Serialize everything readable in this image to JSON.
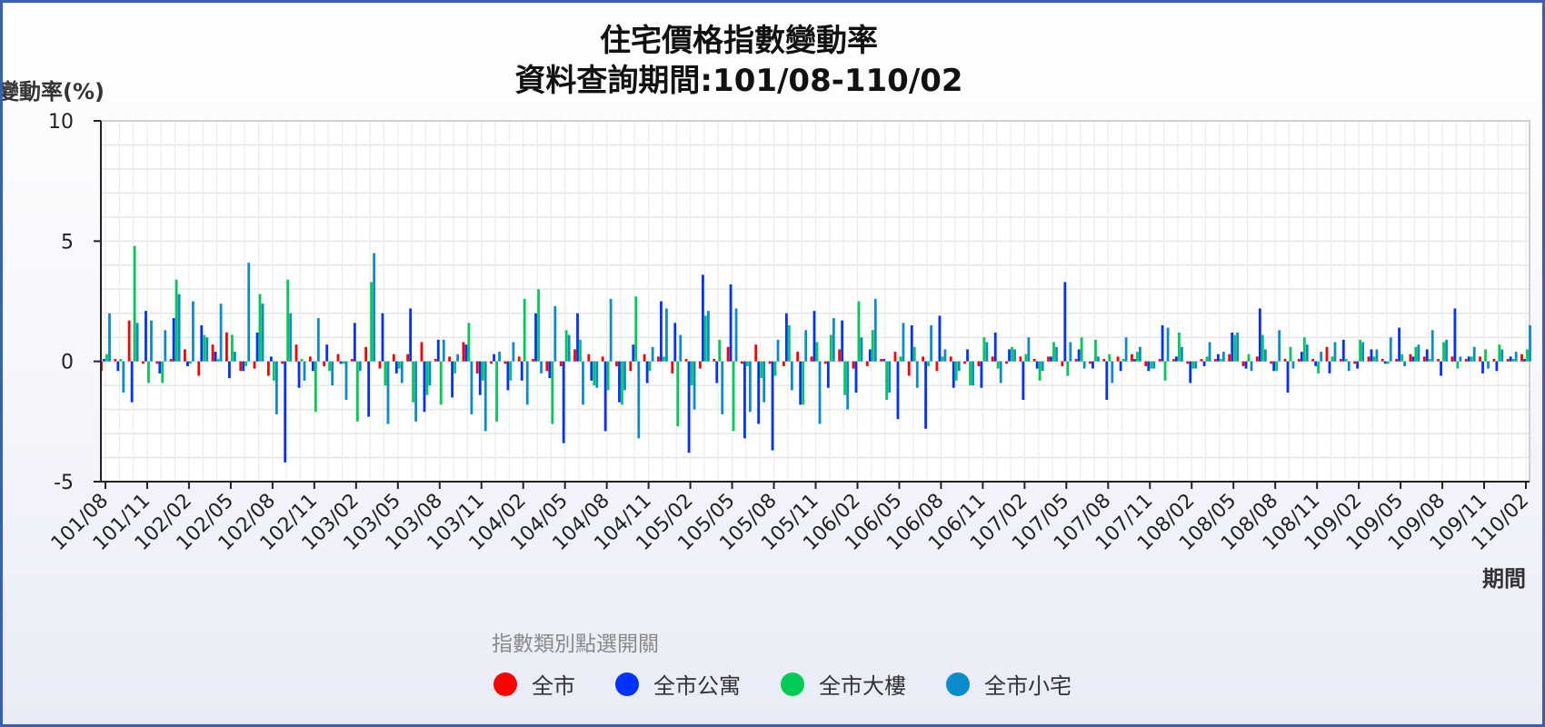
{
  "chart_data": {
    "type": "bar",
    "title": "住宅價格指數變動率",
    "subtitle": "資料查詢期間:101/08-110/02",
    "ylabel": "變動率(%)",
    "xlabel": "期間",
    "ylim": [
      -5,
      10
    ],
    "yticks": [
      -5,
      0,
      5,
      10
    ],
    "grid": true,
    "x_tick_labels": [
      "101/08",
      "101/11",
      "102/02",
      "102/05",
      "102/08",
      "102/11",
      "103/02",
      "103/05",
      "103/08",
      "103/11",
      "104/02",
      "104/05",
      "104/08",
      "104/11",
      "105/02",
      "105/05",
      "105/08",
      "105/11",
      "106/02",
      "106/05",
      "106/08",
      "106/11",
      "107/02",
      "107/05",
      "107/08",
      "107/11",
      "108/02",
      "108/05",
      "108/08",
      "108/11",
      "109/02",
      "109/05",
      "109/08",
      "109/11",
      "110/02"
    ],
    "categories": [
      "101/08",
      "101/09",
      "101/10",
      "101/11",
      "101/12",
      "102/01",
      "102/02",
      "102/03",
      "102/04",
      "102/05",
      "102/06",
      "102/07",
      "102/08",
      "102/09",
      "102/10",
      "102/11",
      "102/12",
      "103/01",
      "103/02",
      "103/03",
      "103/04",
      "103/05",
      "103/06",
      "103/07",
      "103/08",
      "103/09",
      "103/10",
      "103/11",
      "103/12",
      "104/01",
      "104/02",
      "104/03",
      "104/04",
      "104/05",
      "104/06",
      "104/07",
      "104/08",
      "104/09",
      "104/10",
      "104/11",
      "104/12",
      "105/01",
      "105/02",
      "105/03",
      "105/04",
      "105/05",
      "105/06",
      "105/07",
      "105/08",
      "105/09",
      "105/10",
      "105/11",
      "105/12",
      "106/01",
      "106/02",
      "106/03",
      "106/04",
      "106/05",
      "106/06",
      "106/07",
      "106/08",
      "106/09",
      "106/10",
      "106/11",
      "106/12",
      "107/01",
      "107/02",
      "107/03",
      "107/04",
      "107/05",
      "107/06",
      "107/07",
      "107/08",
      "107/09",
      "107/10",
      "107/11",
      "107/12",
      "108/01",
      "108/02",
      "108/03",
      "108/04",
      "108/05",
      "108/06",
      "108/07",
      "108/08",
      "108/09",
      "108/10",
      "108/11",
      "108/12",
      "109/01",
      "109/02",
      "109/03",
      "109/04",
      "109/05",
      "109/06",
      "109/07",
      "109/08",
      "109/09",
      "109/10",
      "109/11",
      "109/12",
      "110/01",
      "110/02"
    ],
    "series": [
      {
        "name": "全市",
        "color": "#ff0000",
        "values": [
          -0.4,
          0.1,
          1.7,
          -0.1,
          -0.1,
          0.1,
          0.5,
          -0.6,
          0.7,
          1.2,
          -0.4,
          -0.3,
          -0.6,
          -0.1,
          0.7,
          0.2,
          -0.2,
          0.3,
          0.1,
          0.6,
          -0.3,
          0.3,
          0.3,
          0.8,
          0.1,
          0.2,
          0.8,
          -0.5,
          -0.1,
          -0.1,
          0.2,
          0.1,
          -0.4,
          -0.2,
          0.5,
          0.3,
          0.2,
          -0.2,
          -0.4,
          0.3,
          0.2,
          -0.5,
          0.1,
          -0.3,
          0.1,
          0.6,
          -0.1,
          0.7,
          -0.1,
          -0.2,
          0.4,
          0.2,
          -0.1,
          0.5,
          -0.3,
          -0.2,
          0.1,
          0.4,
          -0.6,
          0.2,
          -0.4,
          0.2,
          -0.1,
          -0.2,
          0.2,
          -0.1,
          0.2,
          0.1,
          0.2,
          -0.2,
          0.1,
          -0.1,
          0.1,
          0.2,
          0.3,
          -0.2,
          0.1,
          0.1,
          -0.1,
          0.1,
          0.1,
          0.3,
          -0.2,
          0.2,
          -0.1,
          0.1,
          0.1,
          0.1,
          0.6,
          0.1,
          -0.1,
          0.2,
          0.1,
          0.1,
          0.3,
          0.2,
          0.1,
          0.2,
          0.1,
          0.2,
          0.1,
          0.1,
          0.3
        ]
      },
      {
        "name": "全市公寓",
        "color": "#0033ff",
        "values": [
          0.1,
          -0.4,
          -1.7,
          2.1,
          -0.5,
          1.8,
          -0.2,
          1.5,
          0.4,
          -0.7,
          -0.4,
          1.2,
          0.2,
          -4.2,
          -1.1,
          -0.4,
          0.7,
          -0.1,
          1.6,
          -2.3,
          2.0,
          -0.5,
          2.2,
          -2.1,
          0.9,
          -1.5,
          0.7,
          -1.4,
          0.3,
          -1.2,
          -0.8,
          2.0,
          -0.7,
          -3.4,
          2.0,
          -0.8,
          -2.9,
          -1.7,
          0.7,
          -0.9,
          2.5,
          1.6,
          -3.8,
          3.6,
          -0.9,
          3.2,
          -3.2,
          -2.6,
          -3.7,
          2.0,
          -1.8,
          2.1,
          -1.1,
          1.7,
          -1.3,
          0.5,
          0.1,
          -2.4,
          1.5,
          -2.8,
          1.9,
          -1.1,
          0.5,
          -1.1,
          1.2,
          0.5,
          -1.6,
          -0.3,
          0.2,
          3.3,
          0.5,
          -0.3,
          -1.6,
          -0.4,
          0.1,
          -0.4,
          1.5,
          0.2,
          -0.9,
          -0.2,
          0.3,
          1.2,
          -0.3,
          2.2,
          -0.4,
          -1.3,
          0.4,
          -0.2,
          -0.5,
          0.9,
          -0.3,
          0.5,
          -0.1,
          1.4,
          0.2,
          0.5,
          -0.6,
          2.2,
          0.2,
          -0.5,
          -0.4,
          0.2,
          0.1
        ]
      },
      {
        "name": "全市大樓",
        "color": "#00cc55",
        "values": [
          0.3,
          0.1,
          4.8,
          -0.9,
          -0.9,
          3.4,
          -0.1,
          1.1,
          0.1,
          1.1,
          -0.2,
          2.8,
          -0.8,
          3.4,
          0.1,
          -2.1,
          -0.4,
          -0.1,
          -2.5,
          3.3,
          -1.0,
          -0.3,
          -1.7,
          -1.4,
          -1.8,
          -0.5,
          1.6,
          -0.8,
          -2.5,
          -0.8,
          2.6,
          3.0,
          -2.6,
          1.3,
          0.9,
          -1.0,
          -1.2,
          -1.8,
          2.7,
          -0.4,
          0.2,
          -2.7,
          -1.0,
          1.9,
          0.9,
          -2.9,
          -0.2,
          -0.7,
          -0.6,
          1.5,
          -1.8,
          0.8,
          1.1,
          -1.4,
          2.5,
          1.3,
          -1.6,
          0.2,
          0.6,
          -0.2,
          0.2,
          -0.8,
          -1.0,
          1.0,
          -0.3,
          0.6,
          0.3,
          -0.8,
          0.8,
          -0.6,
          1.0,
          0.9,
          0.3,
          0.1,
          0.4,
          -0.3,
          -0.8,
          1.2,
          -0.3,
          0.2,
          0.1,
          1.1,
          0.3,
          1.1,
          -0.4,
          0.6,
          1.0,
          -0.5,
          0.2,
          0.1,
          0.9,
          0.2,
          -0.1,
          0.3,
          0.6,
          0.1,
          0.8,
          -0.3,
          0.2,
          0.5,
          0.7,
          0.1,
          0.5
        ]
      },
      {
        "name": "全市小宅",
        "color": "#0a8ccc",
        "values": [
          2.0,
          -1.3,
          1.6,
          1.7,
          1.3,
          2.8,
          2.5,
          1.0,
          2.4,
          0.4,
          4.1,
          2.4,
          -2.2,
          2.0,
          -0.8,
          1.8,
          -1.0,
          -1.6,
          -0.4,
          4.5,
          -2.6,
          -0.9,
          -2.5,
          -1.0,
          0.9,
          0.3,
          -2.2,
          -2.9,
          0.4,
          0.8,
          -1.8,
          -0.5,
          2.3,
          1.1,
          -1.8,
          -1.1,
          2.6,
          -1.2,
          -3.2,
          0.6,
          2.2,
          1.1,
          -2.0,
          2.1,
          -2.2,
          2.2,
          -2.1,
          -1.7,
          0.9,
          -1.2,
          1.3,
          -2.6,
          1.8,
          -2.0,
          1.0,
          2.6,
          -1.3,
          1.6,
          -1.1,
          1.5,
          0.5,
          -0.4,
          -1.0,
          0.8,
          -0.9,
          0.5,
          1.0,
          -0.4,
          0.6,
          0.8,
          -0.3,
          0.2,
          -0.9,
          1.0,
          0.6,
          -0.3,
          1.4,
          0.6,
          -0.3,
          0.8,
          0.4,
          1.2,
          -0.4,
          0.5,
          1.3,
          -0.3,
          0.7,
          0.4,
          0.8,
          -0.4,
          0.8,
          0.5,
          1.0,
          -0.2,
          0.7,
          1.3,
          0.9,
          0.2,
          0.6,
          -0.3,
          0.5,
          0.4,
          1.5
        ]
      }
    ]
  },
  "legend": {
    "title": "指數類別點選開關",
    "items": [
      {
        "label": "全市",
        "color": "#ff0000"
      },
      {
        "label": "全市公寓",
        "color": "#0033ff"
      },
      {
        "label": "全市大樓",
        "color": "#00cc55"
      },
      {
        "label": "全市小宅",
        "color": "#0a8ccc"
      }
    ]
  }
}
